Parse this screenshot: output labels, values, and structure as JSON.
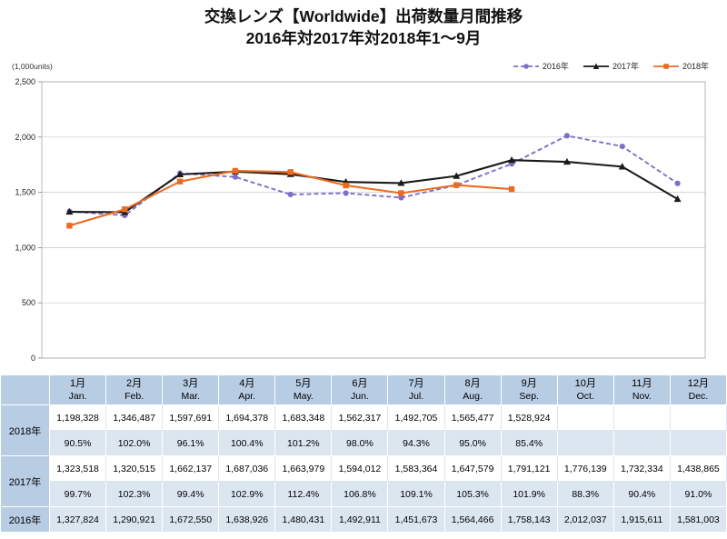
{
  "title": {
    "line1": "交換レンズ【Worldwide】出荷数量月間推移",
    "line2": "2016年対2017年対2018年1〜9月"
  },
  "chart_data": {
    "type": "line",
    "title": "交換レンズ【Worldwide】出荷数量月間推移 2016年対2017年対2018年1〜9月",
    "unit": "(1,000units)",
    "categories": [
      "1月",
      "2月",
      "3月",
      "4月",
      "5月",
      "6月",
      "7月",
      "8月",
      "9月",
      "10月",
      "11月",
      "12月"
    ],
    "series": [
      {
        "name": "2016年",
        "color": "#7d6fc8",
        "dash": "5 3",
        "marker": "circle",
        "values": [
          1327.8,
          1290.9,
          1672.6,
          1638.9,
          1480.4,
          1492.9,
          1451.7,
          1564.5,
          1758.1,
          2012.0,
          1915.6,
          1581.0
        ]
      },
      {
        "name": "2017年",
        "color": "#1a1a1a",
        "dash": "",
        "marker": "triangle",
        "values": [
          1323.5,
          1320.5,
          1662.1,
          1687.0,
          1664.0,
          1594.0,
          1583.4,
          1647.6,
          1791.1,
          1776.1,
          1732.3,
          1438.9
        ]
      },
      {
        "name": "2018年",
        "color": "#ed6b21",
        "dash": "",
        "marker": "square",
        "values": [
          1198.3,
          1346.5,
          1597.7,
          1694.4,
          1683.3,
          1562.3,
          1492.7,
          1565.5,
          1528.9
        ]
      }
    ],
    "ylim": [
      0,
      2500
    ],
    "ytick_step": 500,
    "grid": true,
    "legend_position": "top-right"
  },
  "table": {
    "months": [
      {
        "jp": "1月",
        "en": "Jan."
      },
      {
        "jp": "2月",
        "en": "Feb."
      },
      {
        "jp": "3月",
        "en": "Mar."
      },
      {
        "jp": "4月",
        "en": "Apr."
      },
      {
        "jp": "5月",
        "en": "May."
      },
      {
        "jp": "6月",
        "en": "Jun."
      },
      {
        "jp": "7月",
        "en": "Jul."
      },
      {
        "jp": "8月",
        "en": "Aug."
      },
      {
        "jp": "9月",
        "en": "Sep."
      },
      {
        "jp": "10月",
        "en": "Oct."
      },
      {
        "jp": "11月",
        "en": "Nov."
      },
      {
        "jp": "12月",
        "en": "Dec."
      }
    ],
    "row_groups": [
      {
        "label": "2018年",
        "shaded": false,
        "values": [
          "1,198,328",
          "1,346,487",
          "1,597,691",
          "1,694,378",
          "1,683,348",
          "1,562,317",
          "1,492,705",
          "1,565,477",
          "1,528,924",
          "",
          "",
          ""
        ],
        "percents": [
          "90.5%",
          "102.0%",
          "96.1%",
          "100.4%",
          "101.2%",
          "98.0%",
          "94.3%",
          "95.0%",
          "85.4%",
          "",
          "",
          ""
        ]
      },
      {
        "label": "2017年",
        "shaded": false,
        "values": [
          "1,323,518",
          "1,320,515",
          "1,662,137",
          "1,687,036",
          "1,663,979",
          "1,594,012",
          "1,583,364",
          "1,647,579",
          "1,791,121",
          "1,776,139",
          "1,732,334",
          "1,438,865"
        ],
        "percents": [
          "99.7%",
          "102.3%",
          "99.4%",
          "102.9%",
          "112.4%",
          "106.8%",
          "109.1%",
          "105.3%",
          "101.9%",
          "88.3%",
          "90.4%",
          "91.0%"
        ]
      },
      {
        "label": "2016年",
        "shaded": true,
        "values": [
          "1,327,824",
          "1,290,921",
          "1,672,550",
          "1,638,926",
          "1,480,431",
          "1,492,911",
          "1,451,673",
          "1,564,466",
          "1,758,143",
          "2,012,037",
          "1,915,611",
          "1,581,003"
        ],
        "percents": null
      }
    ]
  },
  "colors": {
    "header_bg": "#b8cce4",
    "band_bg": "#dce6f1",
    "grid_line": "#c8c8c8",
    "s2016": "#7d6fc8",
    "s2017": "#1a1a1a",
    "s2018": "#ed6b21"
  }
}
